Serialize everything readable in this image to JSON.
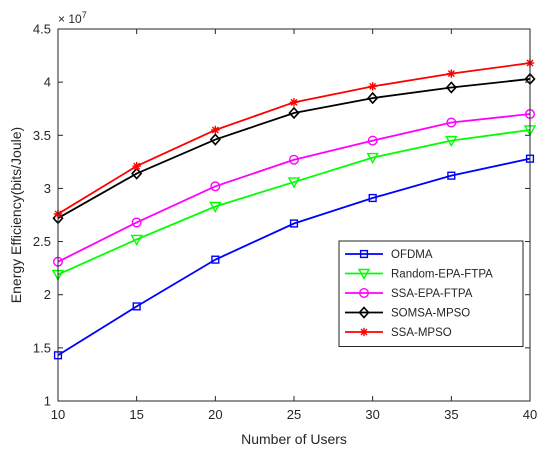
{
  "chart_data": {
    "type": "line",
    "xlabel": "Number of Users",
    "ylabel": "Energy Efficiency(bits/Joule)",
    "y_exponent_label": "× 10^7",
    "x": [
      10,
      15,
      20,
      25,
      30,
      35,
      40
    ],
    "xlim": [
      10,
      40
    ],
    "ylim": [
      1,
      4.5
    ],
    "xticks": [
      "10",
      "15",
      "20",
      "25",
      "30",
      "35",
      "40"
    ],
    "yticks": [
      "1",
      "1.5",
      "2",
      "2.5",
      "3",
      "3.5",
      "4",
      "4.5"
    ],
    "grid": false,
    "legend_position": "lower-right",
    "series": [
      {
        "name": "OFDMA",
        "color": "#0000ff",
        "marker": "square",
        "values": [
          1.43,
          1.89,
          2.33,
          2.67,
          2.91,
          3.12,
          3.28
        ]
      },
      {
        "name": "Random-EPA-FTPA",
        "color": "#00ff00",
        "marker": "triangle-down",
        "values": [
          2.19,
          2.52,
          2.83,
          3.06,
          3.29,
          3.45,
          3.55
        ]
      },
      {
        "name": "SSA-EPA-FTPA",
        "color": "#ff00ff",
        "marker": "circle",
        "values": [
          2.31,
          2.68,
          3.02,
          3.27,
          3.45,
          3.62,
          3.7
        ]
      },
      {
        "name": "SOMSA-MPSO",
        "color": "#000000",
        "marker": "diamond",
        "values": [
          2.72,
          3.14,
          3.46,
          3.71,
          3.85,
          3.95,
          4.03
        ]
      },
      {
        "name": "SSA-MPSO",
        "color": "#ff0000",
        "marker": "star",
        "values": [
          2.76,
          3.21,
          3.55,
          3.81,
          3.96,
          4.08,
          4.18
        ]
      }
    ]
  }
}
